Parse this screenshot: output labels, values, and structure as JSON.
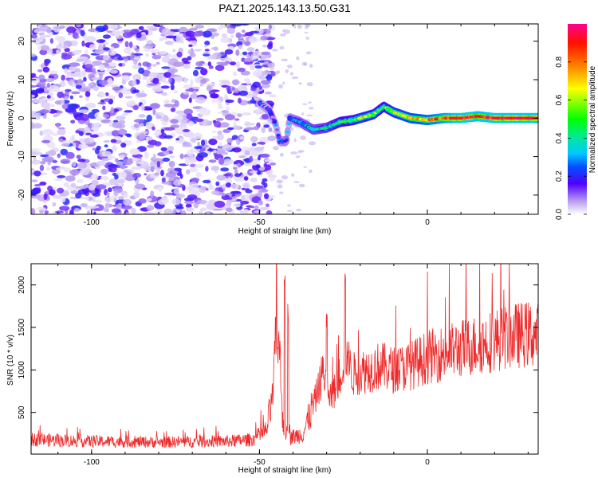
{
  "title": "PAZ1.2025.143.13.50.G31",
  "chart_data": [
    {
      "type": "heatmap",
      "xlabel": "Height of straight line (km)",
      "ylabel": "Frequency (Hz)",
      "xlim": [
        -118,
        33
      ],
      "ylim": [
        -25,
        24.5
      ],
      "xticks": [
        -100,
        -50,
        0
      ],
      "yticks": [
        -20,
        -10,
        0,
        10,
        20
      ],
      "colorbar": {
        "label": "Normalized spectral amplitude",
        "range": [
          0,
          1
        ],
        "ticks": [
          0.0,
          0.2,
          0.4,
          0.6,
          0.8
        ]
      },
      "ridge": {
        "points": [
          [
            -50,
            4
          ],
          [
            -47,
            2
          ],
          [
            -45,
            -2
          ],
          [
            -44,
            -6
          ],
          [
            -42,
            -6
          ],
          [
            -41,
            0
          ],
          [
            -38,
            -1
          ],
          [
            -34,
            -3
          ],
          [
            -30,
            -2.5
          ],
          [
            -26,
            -1
          ],
          [
            -22,
            -0.5
          ],
          [
            -20,
            0
          ],
          [
            -16,
            1
          ],
          [
            -13,
            3
          ],
          [
            -10,
            1.5
          ],
          [
            -5,
            0
          ],
          [
            0,
            -0.5
          ],
          [
            5,
            0
          ],
          [
            10,
            0
          ],
          [
            15,
            0.5
          ],
          [
            20,
            0
          ],
          [
            25,
            0
          ],
          [
            33,
            0
          ]
        ],
        "amplitude": [
          0.15,
          0.18,
          0.18,
          0.2,
          0.25,
          0.22,
          0.3,
          0.35,
          0.38,
          0.45,
          0.5,
          0.6,
          0.55,
          0.45,
          0.6,
          0.7,
          0.75,
          0.85,
          0.95,
          0.9,
          0.92,
          0.95,
          0.95
        ]
      }
    },
    {
      "type": "line",
      "xlabel": "Height of straight line (km)",
      "ylabel": "SNR (10 * v/v)",
      "xlim": [
        -118,
        33
      ],
      "ylim": [
        10,
        2250
      ],
      "xticks": [
        -100,
        -50,
        0
      ],
      "yticks": [
        500,
        1000,
        1500,
        2000
      ],
      "series": [
        {
          "color": "#ee2a2a",
          "envelope": [
            [
              -118,
              180
            ],
            [
              -100,
              160
            ],
            [
              -80,
              150
            ],
            [
              -60,
              160
            ],
            [
              -52,
              180
            ],
            [
              -48,
              280
            ],
            [
              -46,
              700
            ],
            [
              -45,
              1500
            ],
            [
              -44,
              1200
            ],
            [
              -43,
              400
            ],
            [
              -41,
              200
            ],
            [
              -37,
              250
            ],
            [
              -33,
              700
            ],
            [
              -31,
              1000
            ],
            [
              -29,
              650
            ],
            [
              -27,
              800
            ],
            [
              -25,
              1100
            ],
            [
              -22,
              950
            ],
            [
              -18,
              1000
            ],
            [
              -14,
              1050
            ],
            [
              -10,
              1000
            ],
            [
              -5,
              1050
            ],
            [
              0,
              1150
            ],
            [
              5,
              1200
            ],
            [
              10,
              1250
            ],
            [
              15,
              1300
            ],
            [
              20,
              1350
            ],
            [
              25,
              1400
            ],
            [
              30,
              1420
            ],
            [
              33,
              1400
            ]
          ],
          "spikes": [
            [
              -42.5,
              2230
            ],
            [
              -41.5,
              1800
            ],
            [
              -30,
              1700
            ],
            [
              -24.5,
              2220
            ],
            [
              -23.5,
              1400
            ]
          ]
        }
      ]
    }
  ]
}
